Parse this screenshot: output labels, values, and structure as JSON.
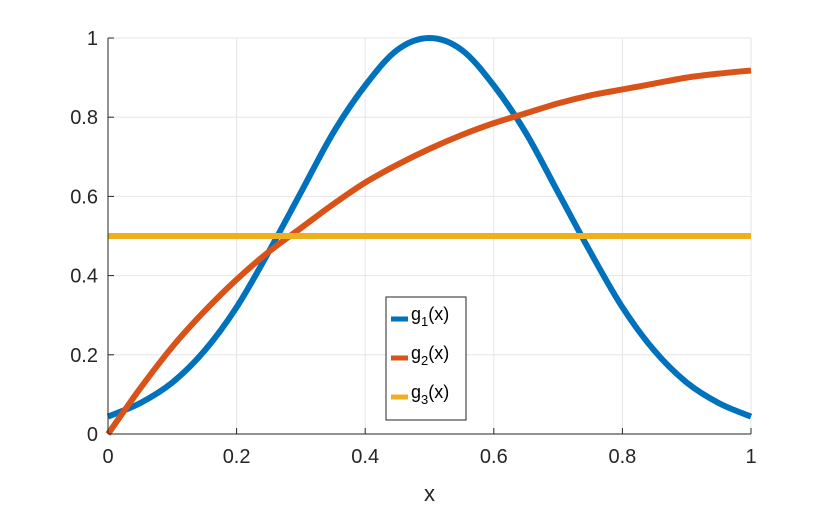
{
  "chart_data": {
    "type": "line",
    "title": "",
    "xlabel": "x",
    "ylabel": "",
    "xlim": [
      0,
      1
    ],
    "ylim": [
      0,
      1
    ],
    "xticks": [
      0,
      0.2,
      0.4,
      0.6,
      0.8,
      1
    ],
    "xtick_labels": [
      "0",
      "0.2",
      "0.4",
      "0.6",
      "0.8",
      "1"
    ],
    "yticks": [
      0,
      0.2,
      0.4,
      0.6,
      0.8,
      1
    ],
    "ytick_labels": [
      "0",
      "0.2",
      "0.4",
      "0.6",
      "0.8",
      "1"
    ],
    "grid": true,
    "legend_position": "bottom-center",
    "x": [
      0,
      0.05,
      0.1,
      0.15,
      0.2,
      0.25,
      0.3,
      0.35,
      0.4,
      0.45,
      0.5,
      0.55,
      0.6,
      0.65,
      0.7,
      0.75,
      0.8,
      0.85,
      0.9,
      0.95,
      1
    ],
    "series": [
      {
        "name": "g1(x)",
        "name_base": "g",
        "name_sub": "1",
        "name_suffix": "(x)",
        "color": "#0072BD",
        "values": [
          0.044,
          0.078,
          0.13,
          0.21,
          0.32,
          0.46,
          0.61,
          0.76,
          0.88,
          0.97,
          1.0,
          0.97,
          0.88,
          0.76,
          0.61,
          0.46,
          0.32,
          0.21,
          0.13,
          0.078,
          0.044
        ]
      },
      {
        "name": "g2(x)",
        "name_base": "g",
        "name_sub": "2",
        "name_suffix": "(x)",
        "color": "#D95319",
        "values": [
          0.0,
          0.115,
          0.22,
          0.31,
          0.39,
          0.46,
          0.52,
          0.58,
          0.635,
          0.68,
          0.72,
          0.755,
          0.785,
          0.81,
          0.835,
          0.855,
          0.87,
          0.885,
          0.9,
          0.91,
          0.918
        ]
      },
      {
        "name": "g3(x)",
        "name_base": "g",
        "name_sub": "3",
        "name_suffix": "(x)",
        "color": "#EDB120",
        "values": [
          0.5,
          0.5,
          0.5,
          0.5,
          0.5,
          0.5,
          0.5,
          0.5,
          0.5,
          0.5,
          0.5,
          0.5,
          0.5,
          0.5,
          0.5,
          0.5,
          0.5,
          0.5,
          0.5,
          0.5,
          0.5
        ]
      }
    ]
  }
}
